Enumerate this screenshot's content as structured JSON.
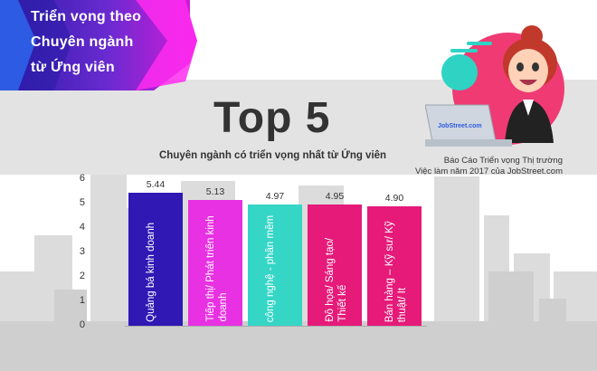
{
  "header": {
    "lines": [
      "Triển vọng theo",
      "Chuyên ngành",
      "từ Ứng viên"
    ]
  },
  "title": "Top 5",
  "subtitle": "Chuyên ngành có triển vọng nhất từ Ứng viên",
  "source": {
    "line1": "Báo Cáo Triển vọng Thị trường",
    "line2": "Việc làm năm 2017 của JobStreet.com"
  },
  "laptop_brand": "JobStreet.com",
  "colors": {
    "banner_dark": "#2b1ca8",
    "banner_blue": "#2d5be3",
    "banner_mid": "#6a2ad0",
    "banner_pink": "#d61bd9",
    "banner_magenta": "#ff2bf0",
    "city": "#d3d3d3",
    "circle_pink": "#f03a74",
    "circle_teal": "#2ed3c4"
  },
  "chart_data": {
    "type": "bar",
    "title": "Chuyên ngành có triển vọng nhất từ Ứng viên",
    "categories": [
      "Quảng bá kinh doanh",
      "Tiếp thị/ Phát triển kinh doanh",
      "công nghệ - phần mềm",
      "Đồ họa/ Sáng tạo/ Thiết kế",
      "Bán hàng – Kỹ sư/ Kỹ thuật/ It"
    ],
    "values": [
      5.44,
      5.13,
      4.97,
      4.95,
      4.9
    ],
    "value_labels": [
      "5.44",
      "5.13",
      "4.97",
      "4.95",
      "4.90"
    ],
    "bar_colors": [
      "#2f18b4",
      "#e831e2",
      "#35d6c6",
      "#e51a79",
      "#e51a79"
    ],
    "yticks": [
      "6",
      "5",
      "4",
      "3",
      "2",
      "1",
      "0"
    ],
    "ylim": [
      0,
      6
    ],
    "xlabel": "",
    "ylabel": ""
  }
}
